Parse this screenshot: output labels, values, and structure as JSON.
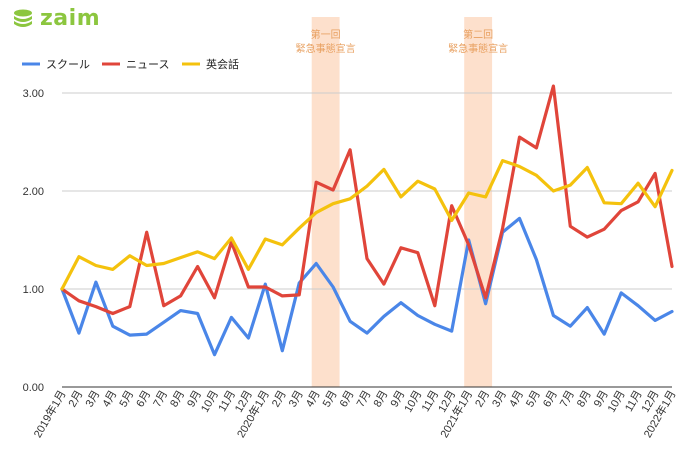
{
  "logo": {
    "text": "zaim"
  },
  "chart_data": {
    "type": "line",
    "title": "",
    "xlabel": "",
    "ylabel": "",
    "ylim": [
      0,
      3.2
    ],
    "yticks": [
      "0.00",
      "1.00",
      "2.00",
      "3.00"
    ],
    "grid": true,
    "legend_position": "top-left",
    "x": [
      "2019年1月",
      "2月",
      "3月",
      "4月",
      "5月",
      "6月",
      "7月",
      "8月",
      "9月",
      "10月",
      "11月",
      "12月",
      "2020年1月",
      "2月",
      "3月",
      "4月",
      "5月",
      "6月",
      "7月",
      "8月",
      "9月",
      "10月",
      "11月",
      "12月",
      "2021年1月",
      "2月",
      "3月",
      "4月",
      "5月",
      "6月",
      "7月",
      "8月",
      "9月",
      "10月",
      "11月",
      "12月",
      "2022年1月"
    ],
    "series": [
      {
        "name": "スクール",
        "color": "#4a86e8",
        "values": [
          1.0,
          0.55,
          1.07,
          0.62,
          0.53,
          0.54,
          0.66,
          0.78,
          0.75,
          0.33,
          0.71,
          0.5,
          1.05,
          0.37,
          1.06,
          1.26,
          1.02,
          0.67,
          0.55,
          0.72,
          0.86,
          0.73,
          0.64,
          0.57,
          1.5,
          0.85,
          1.58,
          1.72,
          1.3,
          0.73,
          0.62,
          0.81,
          0.54,
          0.96,
          0.83,
          0.68,
          0.77
        ]
      },
      {
        "name": "ニュース",
        "color": "#e0453a",
        "values": [
          1.0,
          0.88,
          0.82,
          0.75,
          0.82,
          1.58,
          0.83,
          0.93,
          1.23,
          0.91,
          1.48,
          1.02,
          1.02,
          0.93,
          0.94,
          2.09,
          2.01,
          2.42,
          1.31,
          1.05,
          1.42,
          1.37,
          0.83,
          1.85,
          1.45,
          0.91,
          1.62,
          2.55,
          2.44,
          3.07,
          1.64,
          1.53,
          1.61,
          1.8,
          1.89,
          2.18,
          1.23
        ]
      },
      {
        "name": "英会話",
        "color": "#f4c20d",
        "values": [
          1.0,
          1.33,
          1.24,
          1.2,
          1.34,
          1.24,
          1.26,
          1.32,
          1.38,
          1.31,
          1.52,
          1.2,
          1.51,
          1.45,
          1.62,
          1.78,
          1.87,
          1.92,
          2.05,
          2.22,
          1.94,
          2.1,
          2.02,
          1.7,
          1.98,
          1.94,
          2.31,
          2.25,
          2.16,
          2.0,
          2.06,
          2.24,
          1.88,
          1.87,
          2.08,
          1.84,
          2.21
        ]
      }
    ],
    "annotations": [
      {
        "label_line1": "第一回",
        "label_line2": "緊急事態宣言",
        "x_start": "4月",
        "x_start_index": 15,
        "x_end_index": 16
      },
      {
        "label_line1": "第二回",
        "label_line2": "緊急事態宣言",
        "x_start": "2021年1月",
        "x_start_index": 24,
        "x_end_index": 25
      }
    ],
    "band_color": "#fde0cc",
    "annotation_color": "#e8a060"
  }
}
